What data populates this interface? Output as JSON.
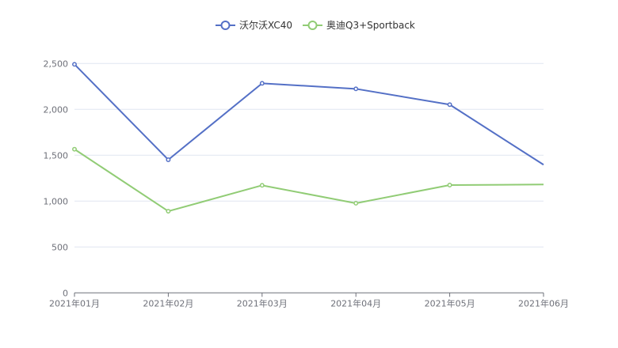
{
  "chart_data": {
    "type": "line",
    "title": "",
    "xlabel": "",
    "ylabel": "",
    "categories": [
      "2021年01月",
      "2021年02月",
      "2021年03月",
      "2021年04月",
      "2021年05月",
      "2021年06月"
    ],
    "ylim": [
      0,
      2500
    ],
    "yticks": [
      0,
      500,
      1000,
      1500,
      2000,
      2500
    ],
    "ytick_labels": [
      "0",
      "500",
      "1,000",
      "1,500",
      "2,000",
      "2,500"
    ],
    "grid": true,
    "legend_position": "top-center",
    "series": [
      {
        "name": "沃尔沃XC40",
        "color": "#5470c6",
        "values": [
          2491,
          1451,
          2284,
          2224,
          2052,
          1397
        ]
      },
      {
        "name": "奥迪Q3+Sportback",
        "color": "#91cc75",
        "values": [
          1566,
          890,
          1172,
          977,
          1175,
          1181
        ]
      }
    ]
  }
}
